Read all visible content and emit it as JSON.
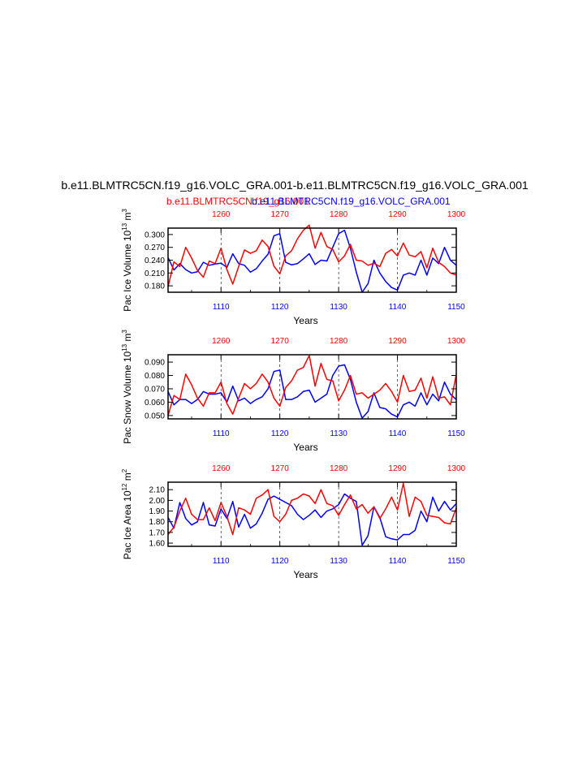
{
  "figure": {
    "title": "b.e11.BLMTRC5CN.f19_g16.VOLC_GRA.001-b.e11.BLMTRC5CN.f19_g16.VOLC_GRA.001",
    "legend_red": "b.e11.BLMTRC5CN.f19_g16.001",
    "legend_blue": "b.e11.BLMTRC5CN.f19_g16.VOLC_GRA.001"
  },
  "colors": {
    "red": "#ff0000",
    "blue": "#0000ff",
    "frame": "#000000"
  },
  "chart_data": [
    {
      "type": "line",
      "ylabel": "Pac Ice Volume 10",
      "ylabel_sup": "13",
      "ylabel_unit": " m",
      "ylabel_unit_sup": "3",
      "xlabel": "Years",
      "ylim": [
        0.165,
        0.315
      ],
      "yticks": [
        "0.300",
        "0.270",
        "0.240",
        "0.210",
        "0.180"
      ],
      "ytick_values": [
        0.3,
        0.27,
        0.24,
        0.21,
        0.18
      ],
      "xlim_bottom": [
        1101,
        1150
      ],
      "xticks_bottom": [
        1110,
        1120,
        1130,
        1140,
        1150
      ],
      "xlim_top": [
        1251,
        1300
      ],
      "xticks_top": [
        1260,
        1270,
        1280,
        1290,
        1300
      ],
      "series": [
        {
          "color": "blue",
          "x_start": 1101,
          "values": [
            0.246,
            0.217,
            0.232,
            0.218,
            0.21,
            0.213,
            0.235,
            0.228,
            0.231,
            0.233,
            0.223,
            0.255,
            0.232,
            0.228,
            0.212,
            0.22,
            0.238,
            0.254,
            0.297,
            0.302,
            0.235,
            0.229,
            0.232,
            0.243,
            0.255,
            0.23,
            0.24,
            0.238,
            0.27,
            0.302,
            0.31,
            0.268,
            0.212,
            0.165,
            0.185,
            0.24,
            0.21,
            0.19,
            0.176,
            0.17,
            0.205,
            0.21,
            0.205,
            0.24,
            0.205,
            0.245,
            0.232,
            0.27,
            0.24,
            0.228
          ]
        },
        {
          "color": "red",
          "x_start": 1251,
          "values": [
            0.178,
            0.236,
            0.225,
            0.27,
            0.245,
            0.216,
            0.2,
            0.238,
            0.232,
            0.268,
            0.218,
            0.184,
            0.225,
            0.264,
            0.256,
            0.262,
            0.287,
            0.272,
            0.226,
            0.208,
            0.25,
            0.262,
            0.29,
            0.31,
            0.322,
            0.268,
            0.305,
            0.272,
            0.265,
            0.236,
            0.25,
            0.277,
            0.24,
            0.238,
            0.228,
            0.233,
            0.225,
            0.256,
            0.265,
            0.25,
            0.28,
            0.252,
            0.248,
            0.26,
            0.222,
            0.268,
            0.235,
            0.225,
            0.21,
            0.205
          ]
        }
      ]
    },
    {
      "type": "line",
      "ylabel": "Pac Snow Volume 10",
      "ylabel_sup": "13",
      "ylabel_unit": " m",
      "ylabel_unit_sup": "3",
      "xlabel": "Years",
      "ylim": [
        0.0475,
        0.0955
      ],
      "yticks": [
        "0.090",
        "0.080",
        "0.070",
        "0.060",
        "0.050"
      ],
      "ytick_values": [
        0.09,
        0.08,
        0.07,
        0.06,
        0.05
      ],
      "xlim_bottom": [
        1101,
        1150
      ],
      "xticks_bottom": [
        1110,
        1120,
        1130,
        1140,
        1150
      ],
      "xlim_top": [
        1251,
        1300
      ],
      "xticks_top": [
        1260,
        1270,
        1280,
        1290,
        1300
      ],
      "series": [
        {
          "color": "blue",
          "x_start": 1101,
          "values": [
            0.068,
            0.058,
            0.062,
            0.062,
            0.059,
            0.062,
            0.068,
            0.066,
            0.066,
            0.067,
            0.06,
            0.072,
            0.061,
            0.063,
            0.059,
            0.062,
            0.064,
            0.07,
            0.083,
            0.084,
            0.062,
            0.062,
            0.064,
            0.068,
            0.069,
            0.06,
            0.063,
            0.066,
            0.08,
            0.087,
            0.088,
            0.077,
            0.06,
            0.048,
            0.053,
            0.067,
            0.056,
            0.055,
            0.051,
            0.049,
            0.058,
            0.06,
            0.057,
            0.067,
            0.058,
            0.066,
            0.061,
            0.075,
            0.066,
            0.062
          ]
        },
        {
          "color": "red",
          "x_start": 1251,
          "values": [
            0.05,
            0.065,
            0.062,
            0.081,
            0.073,
            0.063,
            0.057,
            0.067,
            0.067,
            0.075,
            0.059,
            0.051,
            0.063,
            0.074,
            0.07,
            0.074,
            0.081,
            0.075,
            0.063,
            0.057,
            0.071,
            0.076,
            0.084,
            0.086,
            0.095,
            0.072,
            0.089,
            0.077,
            0.076,
            0.061,
            0.069,
            0.08,
            0.066,
            0.067,
            0.063,
            0.066,
            0.069,
            0.074,
            0.068,
            0.06,
            0.08,
            0.068,
            0.069,
            0.078,
            0.063,
            0.079,
            0.063,
            0.064,
            0.058,
            0.081
          ]
        }
      ]
    },
    {
      "type": "line",
      "ylabel": "Pac Ice Area 10",
      "ylabel_sup": "12",
      "ylabel_unit": " m",
      "ylabel_unit_sup": "2",
      "xlabel": "Years",
      "ylim": [
        1.57,
        2.17
      ],
      "yticks": [
        "2.10",
        "2.00",
        "1.90",
        "1.80",
        "1.70",
        "1.60"
      ],
      "ytick_values": [
        2.1,
        2.0,
        1.9,
        1.8,
        1.7,
        1.6
      ],
      "xlim_bottom": [
        1101,
        1150
      ],
      "xticks_bottom": [
        1110,
        1120,
        1130,
        1140,
        1150
      ],
      "xlim_top": [
        1251,
        1300
      ],
      "xticks_top": [
        1260,
        1270,
        1280,
        1290,
        1300
      ],
      "series": [
        {
          "color": "blue",
          "x_start": 1101,
          "values": [
            1.84,
            1.74,
            1.98,
            1.83,
            1.77,
            1.8,
            1.98,
            1.77,
            1.76,
            1.92,
            1.83,
            1.99,
            1.75,
            1.87,
            1.74,
            1.78,
            1.88,
            2.01,
            2.04,
            2.01,
            1.98,
            1.95,
            1.87,
            1.82,
            1.86,
            1.91,
            1.84,
            1.9,
            1.92,
            1.96,
            2.06,
            2.02,
            1.99,
            1.58,
            1.67,
            1.94,
            1.84,
            1.66,
            1.64,
            1.63,
            1.68,
            1.68,
            1.72,
            1.9,
            1.8,
            2.03,
            1.9,
            1.99,
            1.91,
            1.97
          ]
        },
        {
          "color": "red",
          "x_start": 1251,
          "values": [
            1.68,
            1.75,
            1.9,
            2.02,
            1.87,
            1.82,
            1.82,
            1.93,
            1.81,
            1.98,
            1.85,
            1.68,
            1.93,
            1.91,
            1.87,
            2.02,
            2.05,
            2.1,
            1.85,
            1.8,
            1.87,
            2.0,
            2.02,
            2.06,
            2.04,
            1.97,
            2.1,
            1.97,
            1.95,
            1.86,
            1.96,
            2.05,
            1.92,
            1.96,
            1.88,
            1.94,
            1.83,
            1.92,
            2.03,
            1.91,
            2.16,
            1.85,
            2.03,
            1.99,
            1.86,
            1.85,
            1.84,
            1.79,
            1.78,
            1.93
          ]
        }
      ]
    }
  ]
}
